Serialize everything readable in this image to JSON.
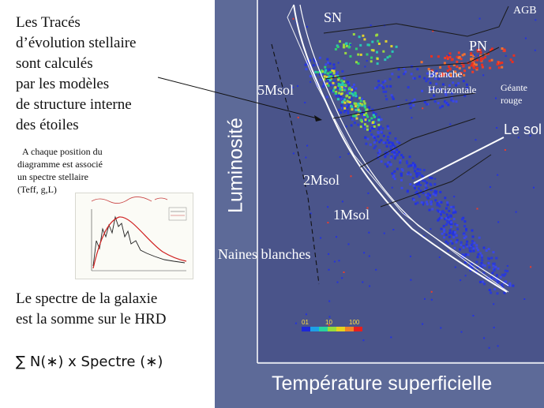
{
  "left_panel": {
    "intro_lines": [
      "Les Tracés",
      "d’évolution stellaire",
      "sont calculés",
      "par les modèles",
      "de structure interne",
      "des étoiles"
    ],
    "note_lines": [
      "A chaque position du",
      "diagramme est associé",
      "un spectre stellaire",
      "(Teff, g,L)"
    ],
    "sum_lines": [
      "Le spectre de la galaxie",
      "est la somme sur le HRD"
    ],
    "formula": "∑ N(∗)  x Spectre (∗)"
  },
  "hrd": {
    "y_axis_label": "Luminosité",
    "x_axis_label": "Température superficielle",
    "labels": {
      "sn": "SN",
      "agb": "AGB",
      "pn": "PN",
      "branche": "Branche",
      "horizontale": "Horizontale",
      "geante": "Géante",
      "rouge": "rouge",
      "le_sol": "Le sol",
      "m5": "5Msol",
      "m2": "2Msol",
      "m1": "1Msol",
      "naines": "Naines blanches"
    },
    "density_scale": {
      "ticks": [
        "01",
        "10",
        "100"
      ],
      "colors": [
        "#1e28d8",
        "#1ea0e6",
        "#28d2a0",
        "#96dc3c",
        "#e6d21e",
        "#f08228",
        "#e61e1e"
      ]
    },
    "colors": {
      "background": "#5d6a98",
      "plot_background": "#4a548a",
      "main_sequence": "#2332e0",
      "hot_core": "#28c8b4",
      "giant_branch": "#f03c28"
    }
  }
}
